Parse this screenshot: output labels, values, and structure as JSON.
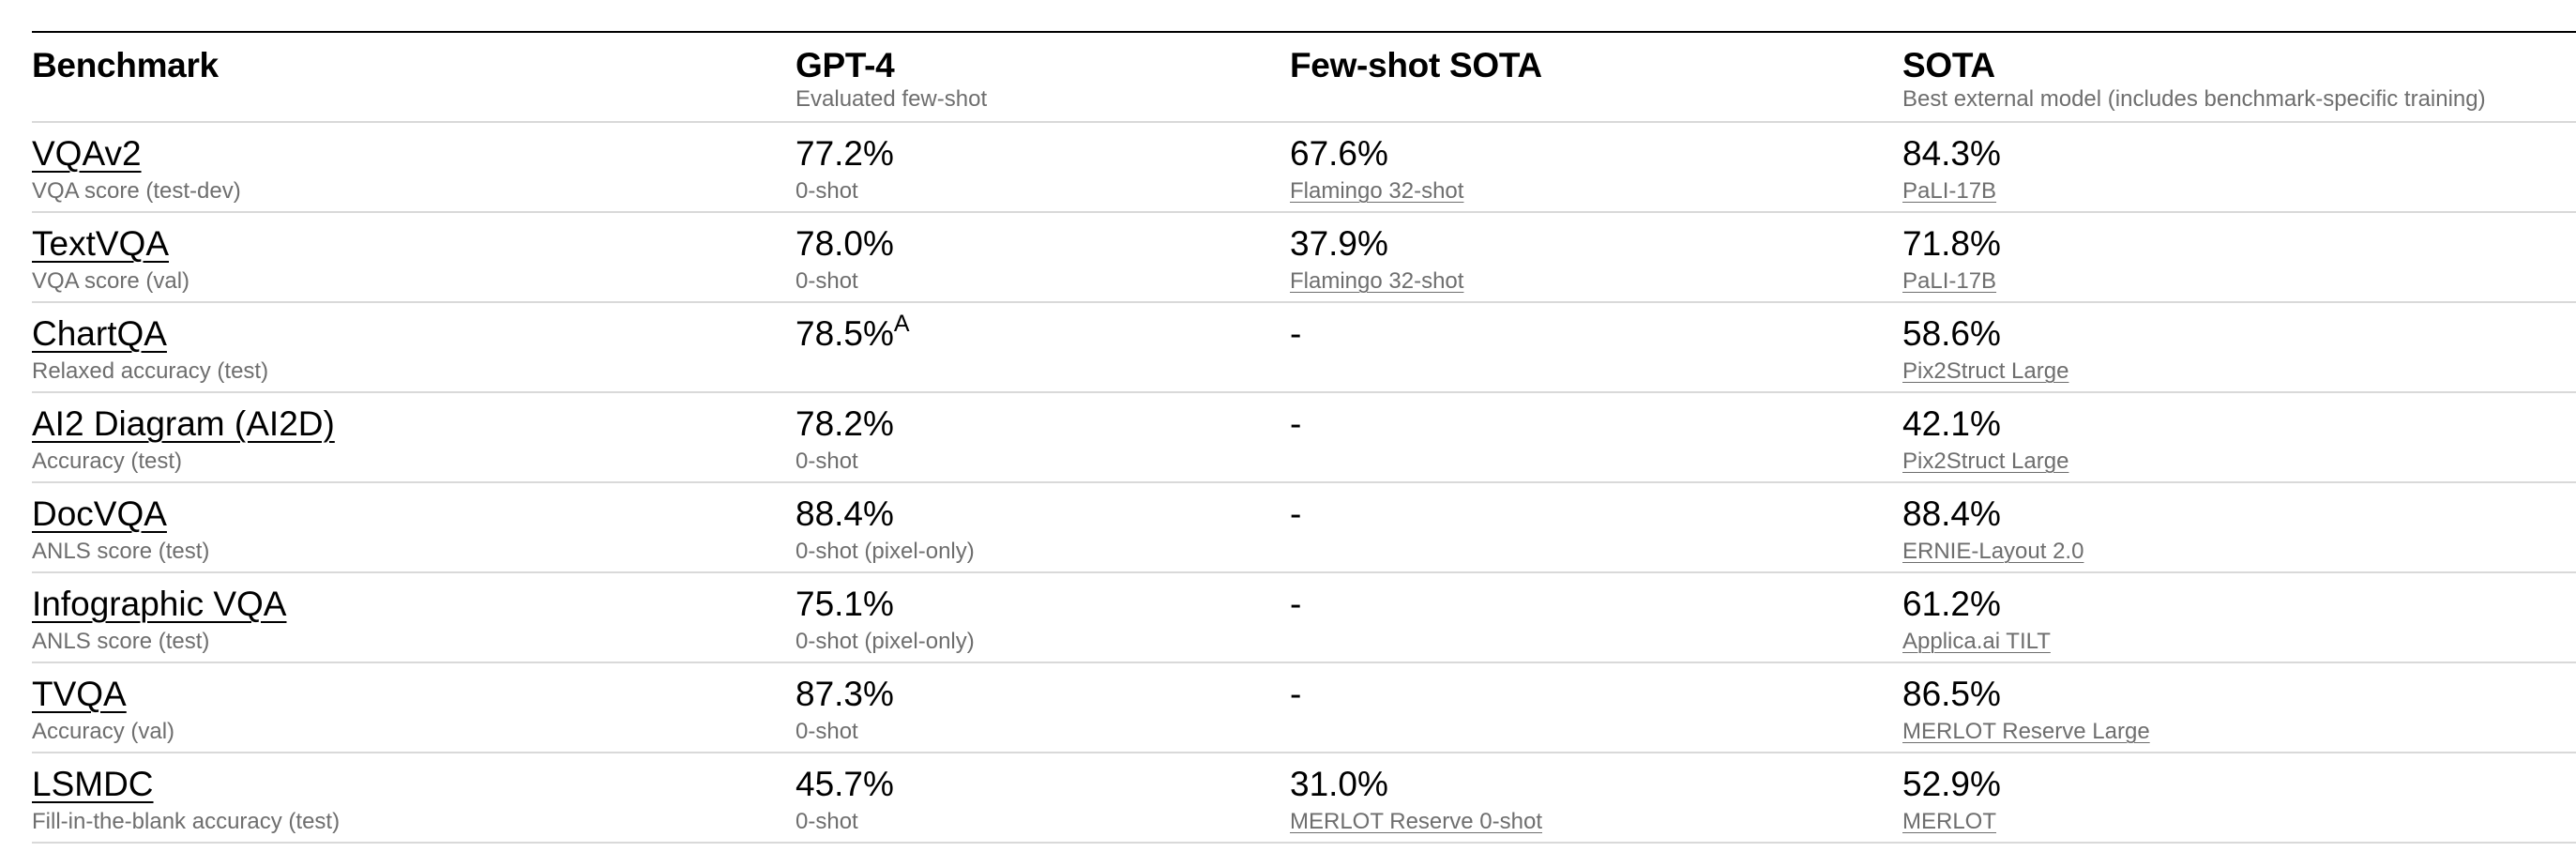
{
  "columns": [
    {
      "title": "Benchmark",
      "subtitle": ""
    },
    {
      "title": "GPT-4",
      "subtitle": "Evaluated few-shot"
    },
    {
      "title": "Few-shot SOTA",
      "subtitle": ""
    },
    {
      "title": "SOTA",
      "subtitle": "Best external model (includes benchmark-specific training)"
    }
  ],
  "rows": [
    {
      "benchmark": "VQAv2",
      "metric": "VQA score (test-dev)",
      "gpt4": "77.2%",
      "gpt4_sup": "",
      "gpt4_note": "0-shot",
      "fewshot": "67.6%",
      "fewshot_note": "Flamingo 32-shot",
      "sota": "84.3%",
      "sota_note": "PaLI-17B"
    },
    {
      "benchmark": "TextVQA",
      "metric": "VQA score (val)",
      "gpt4": "78.0%",
      "gpt4_sup": "",
      "gpt4_note": "0-shot",
      "fewshot": "37.9%",
      "fewshot_note": "Flamingo 32-shot",
      "sota": "71.8%",
      "sota_note": "PaLI-17B"
    },
    {
      "benchmark": "ChartQA",
      "metric": "Relaxed accuracy (test)",
      "gpt4": "78.5%",
      "gpt4_sup": "A",
      "gpt4_note": "",
      "fewshot": "-",
      "fewshot_note": "",
      "sota": "58.6%",
      "sota_note": "Pix2Struct Large"
    },
    {
      "benchmark": "AI2 Diagram (AI2D)",
      "metric": "Accuracy (test)",
      "gpt4": "78.2%",
      "gpt4_sup": "",
      "gpt4_note": "0-shot",
      "fewshot": "-",
      "fewshot_note": "",
      "sota": "42.1%",
      "sota_note": "Pix2Struct Large"
    },
    {
      "benchmark": "DocVQA",
      "metric": "ANLS score (test)",
      "gpt4": "88.4%",
      "gpt4_sup": "",
      "gpt4_note": "0-shot (pixel-only)",
      "fewshot": "-",
      "fewshot_note": "",
      "sota": "88.4%",
      "sota_note": "ERNIE-Layout 2.0"
    },
    {
      "benchmark": "Infographic VQA",
      "metric": "ANLS score (test)",
      "gpt4": "75.1%",
      "gpt4_sup": "",
      "gpt4_note": "0-shot (pixel-only)",
      "fewshot": "-",
      "fewshot_note": "",
      "sota": "61.2%",
      "sota_note": "Applica.ai TILT"
    },
    {
      "benchmark": "TVQA",
      "metric": "Accuracy (val)",
      "gpt4": "87.3%",
      "gpt4_sup": "",
      "gpt4_note": "0-shot",
      "fewshot": "-",
      "fewshot_note": "",
      "sota": "86.5%",
      "sota_note": "MERLOT Reserve Large"
    },
    {
      "benchmark": "LSMDC",
      "metric": "Fill-in-the-blank accuracy (test)",
      "gpt4": "45.7%",
      "gpt4_sup": "",
      "gpt4_note": "0-shot",
      "fewshot": "31.0%",
      "fewshot_note": "MERLOT Reserve 0-shot",
      "sota": "52.9%",
      "sota_note": "MERLOT"
    }
  ]
}
